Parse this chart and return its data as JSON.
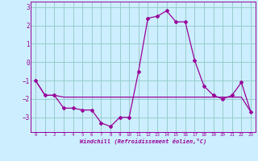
{
  "x": [
    0,
    1,
    2,
    3,
    4,
    5,
    6,
    7,
    8,
    9,
    10,
    11,
    12,
    13,
    14,
    15,
    16,
    17,
    18,
    19,
    20,
    21,
    22,
    23
  ],
  "line1": [
    -1.0,
    -1.8,
    -1.8,
    -2.5,
    -2.5,
    -2.6,
    -2.6,
    -3.3,
    -3.5,
    -3.0,
    -3.0,
    -0.5,
    2.4,
    2.5,
    2.8,
    2.2,
    2.2,
    0.1,
    -1.3,
    -1.8,
    -2.0,
    -1.8,
    -1.1,
    -2.7
  ],
  "line2": [
    -1.0,
    -1.8,
    -1.8,
    -1.9,
    -1.9,
    -1.9,
    -1.9,
    -1.9,
    -1.9,
    -1.9,
    -1.9,
    -1.9,
    -1.9,
    -1.9,
    -1.9,
    -1.9,
    -1.9,
    -1.9,
    -1.9,
    -1.9,
    -1.9,
    -1.9,
    -1.9,
    -2.7
  ],
  "line_color": "#990099",
  "bg_color": "#cceeff",
  "grid_color": "#99cccc",
  "xlabel": "Windchill (Refroidissement éolien,°C)",
  "ylim": [
    -3.8,
    3.3
  ],
  "xlim": [
    -0.5,
    23.5
  ],
  "yticks": [
    -3,
    -2,
    -1,
    0,
    1,
    2,
    3
  ],
  "xticks": [
    0,
    1,
    2,
    3,
    4,
    5,
    6,
    7,
    8,
    9,
    10,
    11,
    12,
    13,
    14,
    15,
    16,
    17,
    18,
    19,
    20,
    21,
    22,
    23
  ]
}
